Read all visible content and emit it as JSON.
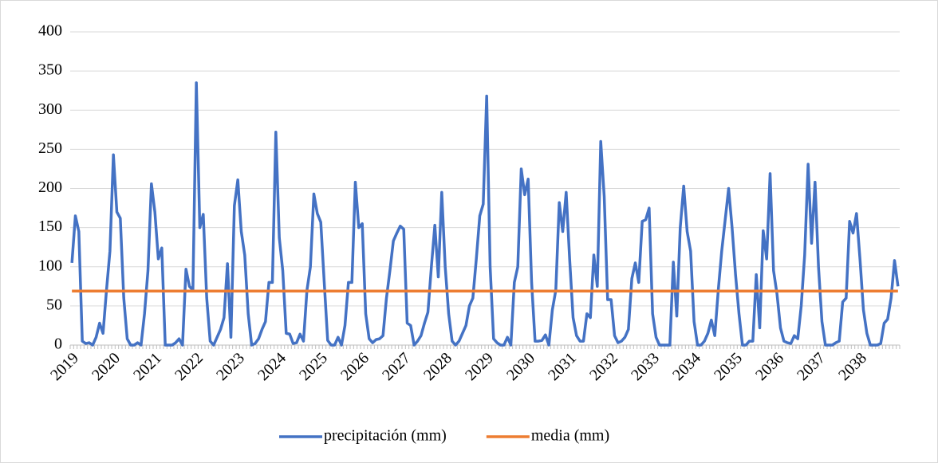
{
  "chart_data": {
    "type": "line",
    "categories": [
      "2019",
      null,
      null,
      null,
      null,
      null,
      null,
      null,
      null,
      null,
      null,
      null,
      "2020",
      null,
      null,
      null,
      null,
      null,
      null,
      null,
      null,
      null,
      null,
      null,
      "2021",
      null,
      null,
      null,
      null,
      null,
      null,
      null,
      null,
      null,
      null,
      null,
      "2022",
      null,
      null,
      null,
      null,
      null,
      null,
      null,
      null,
      null,
      null,
      null,
      "2023",
      null,
      null,
      null,
      null,
      null,
      null,
      null,
      null,
      null,
      null,
      null,
      "2024",
      null,
      null,
      null,
      null,
      null,
      null,
      null,
      null,
      null,
      null,
      null,
      "2025",
      null,
      null,
      null,
      null,
      null,
      null,
      null,
      null,
      null,
      null,
      null,
      "2026",
      null,
      null,
      null,
      null,
      null,
      null,
      null,
      null,
      null,
      null,
      null,
      "2027",
      null,
      null,
      null,
      null,
      null,
      null,
      null,
      null,
      null,
      null,
      null,
      "2028",
      null,
      null,
      null,
      null,
      null,
      null,
      null,
      null,
      null,
      null,
      null,
      "2029",
      null,
      null,
      null,
      null,
      null,
      null,
      null,
      null,
      null,
      null,
      null,
      "2030",
      null,
      null,
      null,
      null,
      null,
      null,
      null,
      null,
      null,
      null,
      null,
      "2031",
      null,
      null,
      null,
      null,
      null,
      null,
      null,
      null,
      null,
      null,
      null,
      "2032",
      null,
      null,
      null,
      null,
      null,
      null,
      null,
      null,
      null,
      null,
      null,
      "2033",
      null,
      null,
      null,
      null,
      null,
      null,
      null,
      null,
      null,
      null,
      null,
      "2034",
      null,
      null,
      null,
      null,
      null,
      null,
      null,
      null,
      null,
      null,
      null,
      "2035",
      null,
      null,
      null,
      null,
      null,
      null,
      null,
      null,
      null,
      null,
      null,
      "2036",
      null,
      null,
      null,
      null,
      null,
      null,
      null,
      null,
      null,
      null,
      null,
      "2037",
      null,
      null,
      null,
      null,
      null,
      null,
      null,
      null,
      null,
      null,
      null,
      "2038",
      null,
      null,
      null,
      null,
      null,
      null,
      null,
      null,
      null,
      null,
      null
    ],
    "series": [
      {
        "name": "precipitación (mm)",
        "color": "#4472c4",
        "values": [
          105,
          165,
          145,
          5,
          2,
          3,
          0,
          10,
          28,
          15,
          70,
          120,
          243,
          170,
          162,
          60,
          8,
          0,
          0,
          3,
          0,
          40,
          95,
          206,
          170,
          110,
          124,
          0,
          0,
          0,
          3,
          8,
          0,
          97,
          75,
          70,
          335,
          150,
          167,
          60,
          5,
          0,
          10,
          20,
          35,
          104,
          10,
          178,
          211,
          145,
          115,
          40,
          0,
          2,
          8,
          20,
          30,
          80,
          80,
          272,
          137,
          95,
          15,
          14,
          2,
          3,
          14,
          5,
          70,
          100,
          193,
          168,
          157,
          80,
          6,
          0,
          0,
          10,
          0,
          25,
          80,
          80,
          208,
          150,
          155,
          40,
          8,
          3,
          7,
          8,
          12,
          60,
          95,
          133,
          143,
          152,
          148,
          28,
          25,
          0,
          5,
          12,
          28,
          42,
          100,
          153,
          87,
          195,
          100,
          40,
          5,
          0,
          5,
          15,
          25,
          50,
          60,
          110,
          165,
          180,
          318,
          100,
          8,
          3,
          0,
          0,
          10,
          0,
          80,
          100,
          225,
          192,
          212,
          80,
          5,
          5,
          6,
          13,
          0,
          45,
          70,
          182,
          145,
          195,
          110,
          35,
          12,
          5,
          5,
          40,
          35,
          115,
          75,
          260,
          190,
          58,
          58,
          12,
          3,
          5,
          10,
          20,
          85,
          105,
          80,
          158,
          160,
          175,
          40,
          10,
          0,
          0,
          0,
          0,
          106,
          37,
          150,
          203,
          145,
          120,
          30,
          0,
          0,
          5,
          15,
          32,
          12,
          70,
          120,
          160,
          200,
          150,
          90,
          40,
          0,
          0,
          5,
          5,
          90,
          22,
          146,
          110,
          219,
          95,
          65,
          22,
          5,
          3,
          2,
          12,
          8,
          50,
          115,
          231,
          130,
          208,
          100,
          30,
          0,
          0,
          0,
          3,
          5,
          55,
          60,
          158,
          143,
          168,
          110,
          45,
          15,
          0,
          0,
          0,
          2,
          28,
          33,
          60,
          108,
          75
        ]
      },
      {
        "name": "media (mm)",
        "color": "#ed7d31",
        "values": [
          69,
          69,
          69,
          69,
          69,
          69,
          69,
          69,
          69,
          69,
          69,
          69,
          69,
          69,
          69,
          69,
          69,
          69,
          69,
          69,
          69,
          69,
          69,
          69,
          69,
          69,
          69,
          69,
          69,
          69,
          69,
          69,
          69,
          69,
          69,
          69,
          69,
          69,
          69,
          69,
          69,
          69,
          69,
          69,
          69,
          69,
          69,
          69,
          69,
          69,
          69,
          69,
          69,
          69,
          69,
          69,
          69,
          69,
          69,
          69,
          69,
          69,
          69,
          69,
          69,
          69,
          69,
          69,
          69,
          69,
          69,
          69,
          69,
          69,
          69,
          69,
          69,
          69,
          69,
          69,
          69,
          69,
          69,
          69,
          69,
          69,
          69,
          69,
          69,
          69,
          69,
          69,
          69,
          69,
          69,
          69,
          69,
          69,
          69,
          69,
          69,
          69,
          69,
          69,
          69,
          69,
          69,
          69,
          69,
          69,
          69,
          69,
          69,
          69,
          69,
          69,
          69,
          69,
          69,
          69,
          69,
          69,
          69,
          69,
          69,
          69,
          69,
          69,
          69,
          69,
          69,
          69,
          69,
          69,
          69,
          69,
          69,
          69,
          69,
          69,
          69,
          69,
          69,
          69,
          69,
          69,
          69,
          69,
          69,
          69,
          69,
          69,
          69,
          69,
          69,
          69,
          69,
          69,
          69,
          69,
          69,
          69,
          69,
          69,
          69,
          69,
          69,
          69,
          69,
          69,
          69,
          69,
          69,
          69,
          69,
          69,
          69,
          69,
          69,
          69,
          69,
          69,
          69,
          69,
          69,
          69,
          69,
          69,
          69,
          69,
          69,
          69,
          69,
          69,
          69,
          69,
          69,
          69,
          69,
          69,
          69,
          69,
          69,
          69,
          69,
          69,
          69,
          69,
          69,
          69,
          69,
          69,
          69,
          69,
          69,
          69,
          69,
          69,
          69,
          69,
          69,
          69,
          69,
          69,
          69,
          69,
          69,
          69,
          69,
          69,
          69,
          69,
          69,
          69,
          69,
          69,
          69,
          69,
          69,
          69
        ]
      }
    ],
    "ylim": [
      0,
      400
    ],
    "yticks": [
      0,
      50,
      100,
      150,
      200,
      250,
      300,
      350,
      400
    ],
    "grid": true,
    "legend": "bottom"
  }
}
